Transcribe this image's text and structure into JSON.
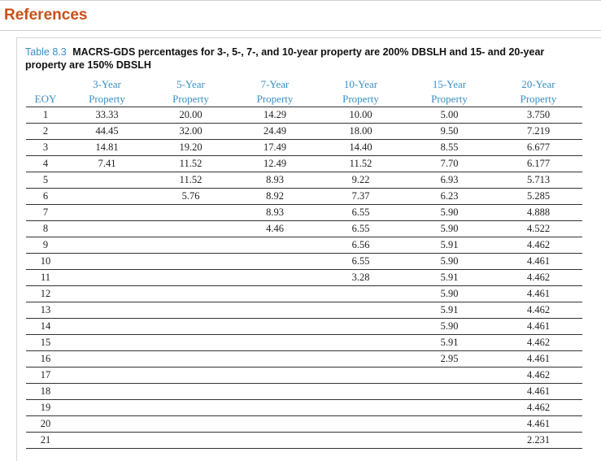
{
  "page_heading": "References",
  "table": {
    "number": "Table 8.3",
    "caption": "MACRS-GDS percentages for 3-, 5-, 7-, and 10-year property are 200% DBSLH and 15- and 20-year property are 150% DBSLH",
    "eoy_header": "EOY",
    "headers": [
      {
        "line1": "3-Year",
        "line2": "Property"
      },
      {
        "line1": "5-Year",
        "line2": "Property"
      },
      {
        "line1": "7-Year",
        "line2": "Property"
      },
      {
        "line1": "10-Year",
        "line2": "Property"
      },
      {
        "line1": "15-Year",
        "line2": "Property"
      },
      {
        "line1": "20-Year",
        "line2": "Property"
      }
    ],
    "rows": [
      {
        "eoy": "1",
        "cols": [
          "33.33",
          "20.00",
          "14.29",
          "10.00",
          "5.00",
          "3.750"
        ]
      },
      {
        "eoy": "2",
        "cols": [
          "44.45",
          "32.00",
          "24.49",
          "18.00",
          "9.50",
          "7.219"
        ]
      },
      {
        "eoy": "3",
        "cols": [
          "14.81",
          "19.20",
          "17.49",
          "14.40",
          "8.55",
          "6.677"
        ]
      },
      {
        "eoy": "4",
        "cols": [
          "7.41",
          "11.52",
          "12.49",
          "11.52",
          "7.70",
          "6.177"
        ]
      },
      {
        "eoy": "5",
        "cols": [
          "",
          "11.52",
          "8.93",
          "9.22",
          "6.93",
          "5.713"
        ]
      },
      {
        "eoy": "6",
        "cols": [
          "",
          "5.76",
          "8.92",
          "7.37",
          "6.23",
          "5.285"
        ]
      },
      {
        "eoy": "7",
        "cols": [
          "",
          "",
          "8.93",
          "6.55",
          "5.90",
          "4.888"
        ]
      },
      {
        "eoy": "8",
        "cols": [
          "",
          "",
          "4.46",
          "6.55",
          "5.90",
          "4.522"
        ]
      },
      {
        "eoy": "9",
        "cols": [
          "",
          "",
          "",
          "6.56",
          "5.91",
          "4.462"
        ]
      },
      {
        "eoy": "10",
        "cols": [
          "",
          "",
          "",
          "6.55",
          "5.90",
          "4.461"
        ]
      },
      {
        "eoy": "11",
        "cols": [
          "",
          "",
          "",
          "3.28",
          "5.91",
          "4.462"
        ]
      },
      {
        "eoy": "12",
        "cols": [
          "",
          "",
          "",
          "",
          "5.90",
          "4.461"
        ]
      },
      {
        "eoy": "13",
        "cols": [
          "",
          "",
          "",
          "",
          "5.91",
          "4.462"
        ]
      },
      {
        "eoy": "14",
        "cols": [
          "",
          "",
          "",
          "",
          "5.90",
          "4.461"
        ]
      },
      {
        "eoy": "15",
        "cols": [
          "",
          "",
          "",
          "",
          "5.91",
          "4.462"
        ]
      },
      {
        "eoy": "16",
        "cols": [
          "",
          "",
          "",
          "",
          "2.95",
          "4.461"
        ]
      },
      {
        "eoy": "17",
        "cols": [
          "",
          "",
          "",
          "",
          "",
          "4.462"
        ]
      },
      {
        "eoy": "18",
        "cols": [
          "",
          "",
          "",
          "",
          "",
          "4.461"
        ]
      },
      {
        "eoy": "19",
        "cols": [
          "",
          "",
          "",
          "",
          "",
          "4.462"
        ]
      },
      {
        "eoy": "20",
        "cols": [
          "",
          "",
          "",
          "",
          "",
          "4.461"
        ]
      },
      {
        "eoy": "21",
        "cols": [
          "",
          "",
          "",
          "",
          "",
          "2.231"
        ]
      }
    ]
  },
  "colors": {
    "heading": "#c8511b",
    "accent": "#3a8ec2",
    "text": "#222222",
    "rule": "#333333"
  }
}
